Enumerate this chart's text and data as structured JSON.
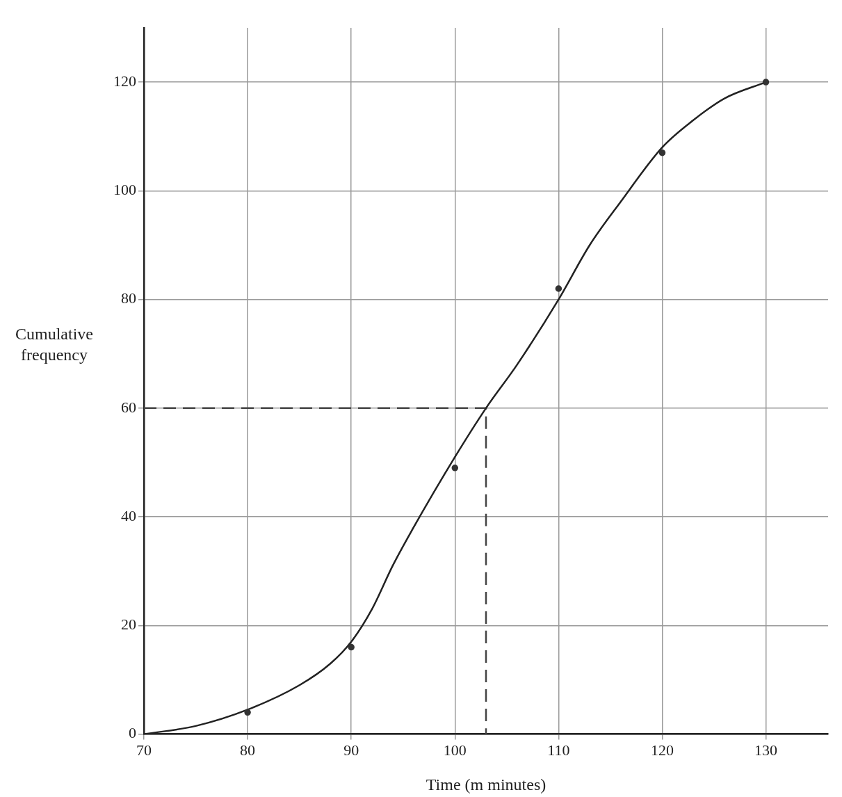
{
  "chart_data": {
    "type": "line",
    "xlabel": "Time (m minutes)",
    "ylabel": "Cumulative frequency",
    "xlim": [
      70,
      136
    ],
    "ylim": [
      0,
      130
    ],
    "xticks": [
      70,
      80,
      90,
      100,
      110,
      120,
      130
    ],
    "yticks": [
      0,
      20,
      40,
      60,
      80,
      100,
      120
    ],
    "grid": true,
    "series": [
      {
        "type": "scatter",
        "color": "#333333",
        "marker": "circle",
        "x": [
          80,
          90,
          100,
          110,
          120,
          130
        ],
        "values": [
          4,
          16,
          49,
          82,
          107,
          120
        ]
      },
      {
        "color": "#222222",
        "marker": "none",
        "line_style": "solid",
        "x": [
          70,
          75,
          80,
          85,
          88,
          90,
          92,
          94,
          96,
          100,
          103,
          106,
          110,
          113,
          116,
          120,
          123,
          126,
          130
        ],
        "values": [
          0,
          1.5,
          4.5,
          9,
          13,
          17,
          23,
          31,
          38,
          51,
          60,
          68,
          80,
          90,
          98,
          108,
          113,
          117,
          120
        ]
      },
      {
        "color": "#444444",
        "marker": "none",
        "line_style": "dashed",
        "x": [
          70,
          103,
          103
        ],
        "values": [
          60,
          60,
          0
        ]
      }
    ]
  }
}
